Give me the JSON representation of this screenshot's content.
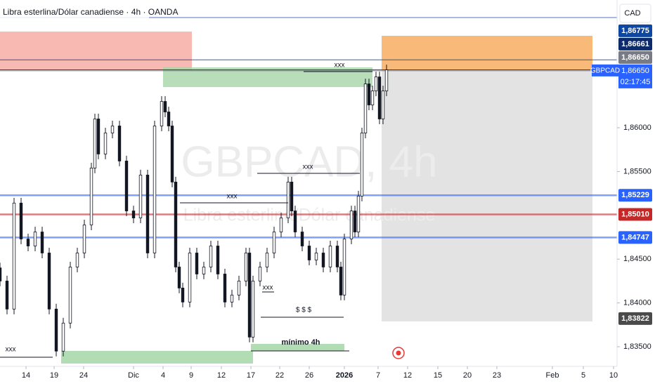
{
  "chart_data": {
    "type": "candlestick",
    "title": "Libra esterlina/Dólar canadiense · 4h · OANDA",
    "watermark": "GBPCAD, 4h",
    "watermark_subtitle": "Libra esterlina/Dólar canadiense",
    "currency": "CAD",
    "up_color": "#ffffff",
    "down_color": "#131722",
    "x": [
      0,
      2,
      4,
      6,
      8,
      10,
      12,
      14,
      16,
      18,
      20,
      22,
      24,
      26,
      27,
      28,
      30,
      32,
      34,
      36,
      38,
      40,
      42,
      44,
      46,
      47,
      48,
      49,
      50,
      51,
      52,
      54,
      56,
      58,
      60,
      62,
      64,
      66,
      68,
      70,
      71,
      72,
      74,
      76,
      78,
      80,
      82,
      83,
      84,
      86,
      88,
      90,
      92,
      94,
      96,
      97,
      98,
      100,
      101,
      102,
      103,
      104,
      105,
      106,
      107,
      108,
      109,
      110
    ],
    "open": [
      1.844,
      1.8425,
      1.8393,
      1.8514,
      1.8473,
      1.8465,
      1.8481,
      1.8457,
      1.8393,
      1.8345,
      1.8377,
      1.8441,
      1.8457,
      1.8489,
      1.8554,
      1.861,
      1.857,
      1.8594,
      1.8602,
      1.8562,
      1.8505,
      1.8497,
      1.8546,
      1.8457,
      1.8602,
      1.863,
      1.8618,
      1.8602,
      1.8538,
      1.8441,
      1.8417,
      1.8401,
      1.8457,
      1.8433,
      1.8441,
      1.8465,
      1.8433,
      1.8401,
      1.8409,
      1.8425,
      1.8457,
      1.8361,
      1.8425,
      1.8441,
      1.8457,
      1.8481,
      1.8497,
      1.8538,
      1.8505,
      1.8481,
      1.8465,
      1.8449,
      1.8457,
      1.8441,
      1.8465,
      1.8441,
      1.8409,
      1.8473,
      1.8505,
      1.8481,
      1.8522,
      1.8594,
      1.865,
      1.8626,
      1.8642,
      1.8658,
      1.861,
      1.8642
    ],
    "high": [
      1.8446,
      1.8431,
      1.852,
      1.852,
      1.8479,
      1.8487,
      1.8487,
      1.8463,
      1.8399,
      1.8383,
      1.8447,
      1.8463,
      1.8495,
      1.856,
      1.8616,
      1.8616,
      1.86,
      1.8608,
      1.8608,
      1.8568,
      1.8511,
      1.8552,
      1.8552,
      1.8608,
      1.8636,
      1.8636,
      1.8624,
      1.8608,
      1.8544,
      1.8447,
      1.8423,
      1.8463,
      1.8463,
      1.8447,
      1.8471,
      1.8471,
      1.8439,
      1.8415,
      1.8431,
      1.8463,
      1.8463,
      1.8431,
      1.8447,
      1.8463,
      1.8487,
      1.8503,
      1.8544,
      1.8544,
      1.8511,
      1.8487,
      1.8471,
      1.8463,
      1.8463,
      1.8471,
      1.8471,
      1.8447,
      1.8479,
      1.8511,
      1.8511,
      1.8528,
      1.86,
      1.8656,
      1.8656,
      1.8648,
      1.8664,
      1.8664,
      1.8648,
      1.8672
    ],
    "low": [
      1.8419,
      1.8387,
      1.8387,
      1.8467,
      1.8459,
      1.8459,
      1.8451,
      1.8387,
      1.8339,
      1.8339,
      1.8371,
      1.8435,
      1.8451,
      1.8483,
      1.8548,
      1.8564,
      1.8564,
      1.8588,
      1.8556,
      1.8499,
      1.8491,
      1.8491,
      1.8451,
      1.8451,
      1.8596,
      1.8612,
      1.8596,
      1.8532,
      1.8435,
      1.8411,
      1.8395,
      1.8395,
      1.8427,
      1.8427,
      1.8435,
      1.8427,
      1.8395,
      1.8395,
      1.8403,
      1.8419,
      1.8355,
      1.8355,
      1.8419,
      1.8435,
      1.8451,
      1.8475,
      1.8491,
      1.8499,
      1.8475,
      1.8459,
      1.8443,
      1.8443,
      1.8435,
      1.8435,
      1.8435,
      1.8403,
      1.8403,
      1.8467,
      1.8475,
      1.8475,
      1.8516,
      1.8588,
      1.862,
      1.862,
      1.8636,
      1.8604,
      1.8604,
      1.8636
    ],
    "close": [
      1.8425,
      1.8393,
      1.8514,
      1.8473,
      1.8465,
      1.8481,
      1.8457,
      1.8393,
      1.8345,
      1.8377,
      1.8441,
      1.8457,
      1.8489,
      1.8554,
      1.861,
      1.857,
      1.8594,
      1.8602,
      1.8562,
      1.8505,
      1.8497,
      1.8546,
      1.8457,
      1.8602,
      1.863,
      1.8618,
      1.8602,
      1.8538,
      1.8441,
      1.8417,
      1.8401,
      1.8457,
      1.8433,
      1.8441,
      1.8465,
      1.8433,
      1.8401,
      1.8409,
      1.8425,
      1.8457,
      1.8361,
      1.8425,
      1.8441,
      1.8457,
      1.8481,
      1.8497,
      1.8538,
      1.8505,
      1.8481,
      1.8465,
      1.8449,
      1.8457,
      1.8441,
      1.8465,
      1.8441,
      1.8409,
      1.8473,
      1.8505,
      1.8481,
      1.8522,
      1.8594,
      1.865,
      1.8626,
      1.8642,
      1.8658,
      1.861,
      1.8642,
      1.8666
    ],
    "xlim": [
      0,
      175.6
    ],
    "ylim": [
      1.83276,
      1.87458
    ],
    "xticks": [
      {
        "value": 7.4,
        "label": "14"
      },
      {
        "value": 15.4,
        "label": "19"
      },
      {
        "value": 23.8,
        "label": "24"
      },
      {
        "value": 38,
        "label": "Dic"
      },
      {
        "value": 46.4,
        "label": "4"
      },
      {
        "value": 54.4,
        "label": "9"
      },
      {
        "value": 63,
        "label": "12"
      },
      {
        "value": 71.4,
        "label": "17"
      },
      {
        "value": 79.6,
        "label": "22"
      },
      {
        "value": 88,
        "label": "26"
      },
      {
        "value": 98,
        "label": "2026"
      },
      {
        "value": 107.6,
        "label": "7"
      },
      {
        "value": 116,
        "label": "12"
      },
      {
        "value": 124.6,
        "label": "15"
      },
      {
        "value": 133,
        "label": "20"
      },
      {
        "value": 141.4,
        "label": "23"
      },
      {
        "value": 157.2,
        "label": "Feb"
      },
      {
        "value": 166,
        "label": "5"
      },
      {
        "value": 174.6,
        "label": "10"
      }
    ],
    "yticks": [
      {
        "value": 1.86,
        "label": "1,86000"
      },
      {
        "value": 1.855,
        "label": "1,85500"
      },
      {
        "value": 1.845,
        "label": "1,84500"
      },
      {
        "value": 1.84,
        "label": "1,84000"
      },
      {
        "value": 1.835,
        "label": "1,83500"
      }
    ],
    "levels": [
      {
        "value": 1.86775,
        "label": "1,86775",
        "color": "#0d47a1",
        "line": true
      },
      {
        "value": 1.86661,
        "label": "1,86661",
        "color": "#0d2a6b",
        "line": true
      },
      {
        "value": 1.8665,
        "label": "1,86650",
        "color": "#787b86",
        "line": true
      },
      {
        "value": 1.85229,
        "label": "1,85229",
        "color": "#2962ff",
        "line": true
      },
      {
        "value": 1.8501,
        "label": "1,85010",
        "color": "#c62828",
        "line": true
      },
      {
        "value": 1.84747,
        "label": "1,84747",
        "color": "#2962ff",
        "line": true
      },
      {
        "value": 1.83822,
        "label": "1,83822",
        "color": "#4a4a4a",
        "line": false
      }
    ],
    "last_price": {
      "symbol": "GBPCAD",
      "value": 1.8665,
      "label": "1,86650",
      "countdown": "02:17:45",
      "color": "#2962ff"
    },
    "annotations": [
      "xxx",
      "xxx",
      "xxx",
      "$ $ $",
      "xxx",
      "xxx",
      "mínimo 4h"
    ]
  }
}
